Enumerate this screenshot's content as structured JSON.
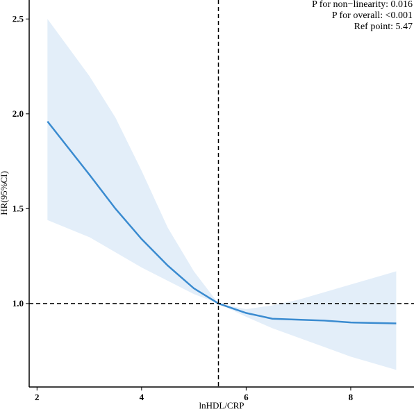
{
  "chart_data": {
    "type": "spline",
    "annotations": [
      "P for non−linearity:  0.016",
      "P for overall:  <0.001",
      "Ref point:  5.47"
    ],
    "x_label": "lnHDL/CRP",
    "y_label": "HR(95%CI)",
    "x": [
      2.2,
      3,
      3.5,
      4,
      4.5,
      5,
      5.47,
      6,
      6.5,
      7,
      7.5,
      8,
      8.87
    ],
    "series": [
      {
        "color": "#3a8bd0",
        "band_color": "#e3eef9",
        "values": [
          1.96,
          1.68,
          1.5,
          1.34,
          1.2,
          1.08,
          1.0,
          0.95,
          0.92,
          0.915,
          0.91,
          0.9,
          0.895
        ],
        "upper": [
          2.5,
          2.2,
          1.98,
          1.7,
          1.4,
          1.17,
          1.0,
          0.97,
          0.99,
          1.02,
          1.06,
          1.1,
          1.17
        ],
        "lower": [
          1.44,
          1.35,
          1.27,
          1.19,
          1.12,
          1.05,
          1.0,
          0.93,
          0.87,
          0.82,
          0.77,
          0.72,
          0.65
        ]
      }
    ],
    "ref_x": 5.47,
    "ref_y": 1,
    "xlim": [
      1.85,
      9.21
    ],
    "ylim": [
      0.56,
      2.6
    ],
    "xticks": [
      2,
      4,
      6,
      8
    ],
    "yticks": [
      {
        "value": 1,
        "label": "1.0"
      },
      1.5,
      {
        "value": 2,
        "label": "2.0"
      },
      2.5
    ]
  }
}
